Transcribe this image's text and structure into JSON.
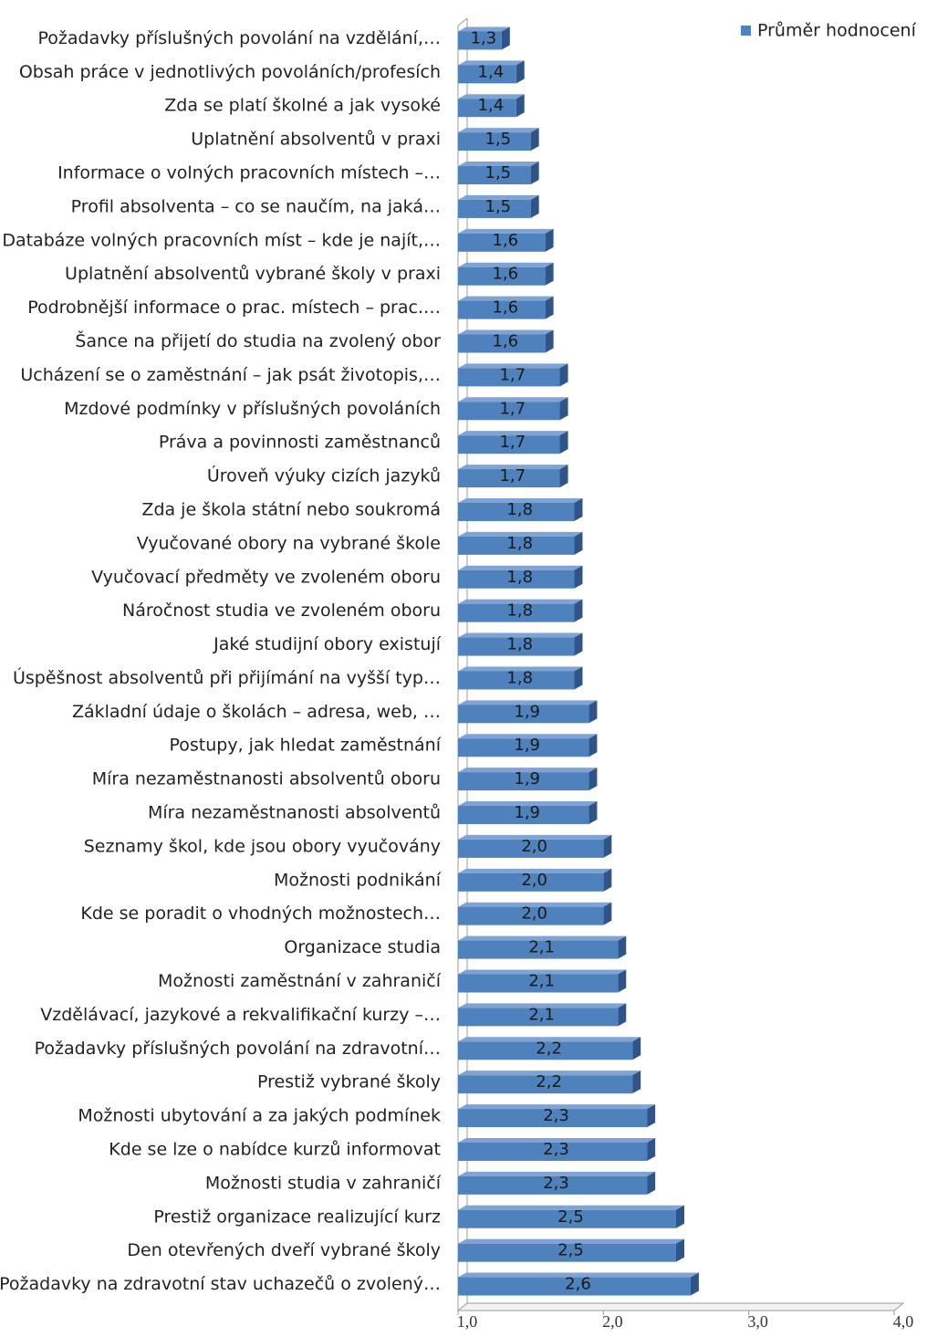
{
  "chart_data": {
    "type": "bar",
    "orientation": "horizontal",
    "categories": [
      "Požadavky příslušných povolání na vzdělání,…",
      "Obsah práce v jednotlivých povoláních/profesích",
      "Zda se platí školné a jak vysoké",
      "Uplatnění absolventů v praxi",
      "Informace o volných pracovních místech –…",
      "Profil absolventa – co se naučím, na jaká…",
      "Databáze volných pracovních míst – kde je najít,…",
      "Uplatnění absolventů vybrané školy v praxi",
      "Podrobnější informace o prac. místech – prac.…",
      "Šance na přijetí do studia na zvolený obor",
      "Ucházení se o zaměstnání – jak psát životopis,…",
      "Mzdové podmínky v příslušných povoláních",
      "Práva a povinnosti zaměstnanců",
      "Úroveň výuky cizích jazyků",
      "Zda je škola státní nebo soukromá",
      "Vyučované obory na vybrané škole",
      "Vyučovací předměty ve zvoleném oboru",
      "Náročnost studia ve zvoleném oboru",
      "Jaké studijní obory existují",
      "Úspěšnost absolventů při přijímání na vyšší typ…",
      "Základní údaje o školách – adresa, web, …",
      "Postupy, jak hledat zaměstnání",
      "Míra nezaměstnanosti absolventů oboru",
      "Míra nezaměstnanosti absolventů",
      "Seznamy škol, kde jsou obory vyučovány",
      "Možnosti podnikání",
      "Kde se poradit o vhodných možnostech…",
      "Organizace studia",
      "Možnosti zaměstnání v zahraničí",
      "Vzdělávací, jazykové a rekvalifikační kurzy –…",
      "Požadavky příslušných povolání na zdravotní…",
      "Prestiž vybrané školy",
      "Možnosti ubytování a za jakých podmínek",
      "Kde se lze o nabídce kurzů informovat",
      "Možnosti studia v zahraničí",
      "Prestiž organizace realizující kurz",
      "Den otevřených dveří vybrané školy",
      "Požadavky na zdravotní stav uchazečů o zvolený…"
    ],
    "series": [
      {
        "name": "Průměr hodnocení",
        "color": "#4f81bd",
        "values": [
          1.3,
          1.4,
          1.4,
          1.5,
          1.5,
          1.5,
          1.6,
          1.6,
          1.6,
          1.6,
          1.7,
          1.7,
          1.7,
          1.7,
          1.8,
          1.8,
          1.8,
          1.8,
          1.8,
          1.8,
          1.9,
          1.9,
          1.9,
          1.9,
          2.0,
          2.0,
          2.0,
          2.1,
          2.1,
          2.1,
          2.2,
          2.2,
          2.3,
          2.3,
          2.3,
          2.5,
          2.5,
          2.6
        ],
        "value_labels": [
          "1,3",
          "1,4",
          "1,4",
          "1,5",
          "1,5",
          "1,5",
          "1,6",
          "1,6",
          "1,6",
          "1,6",
          "1,7",
          "1,7",
          "1,7",
          "1,7",
          "1,8",
          "1,8",
          "1,8",
          "1,8",
          "1,8",
          "1,8",
          "1,9",
          "1,9",
          "1,9",
          "1,9",
          "2,0",
          "2,0",
          "2,0",
          "2,1",
          "2,1",
          "2,1",
          "2,2",
          "2,2",
          "2,3",
          "2,3",
          "2,3",
          "2,5",
          "2,5",
          "2,6"
        ]
      }
    ],
    "xlim": [
      1,
      4
    ],
    "xticks": [
      {
        "value": 1,
        "label": "1,0"
      },
      {
        "value": 2,
        "label": "2,0"
      },
      {
        "value": 3,
        "label": "3,0"
      },
      {
        "value": 4,
        "label": "4,0"
      }
    ],
    "legend": "top-right"
  }
}
